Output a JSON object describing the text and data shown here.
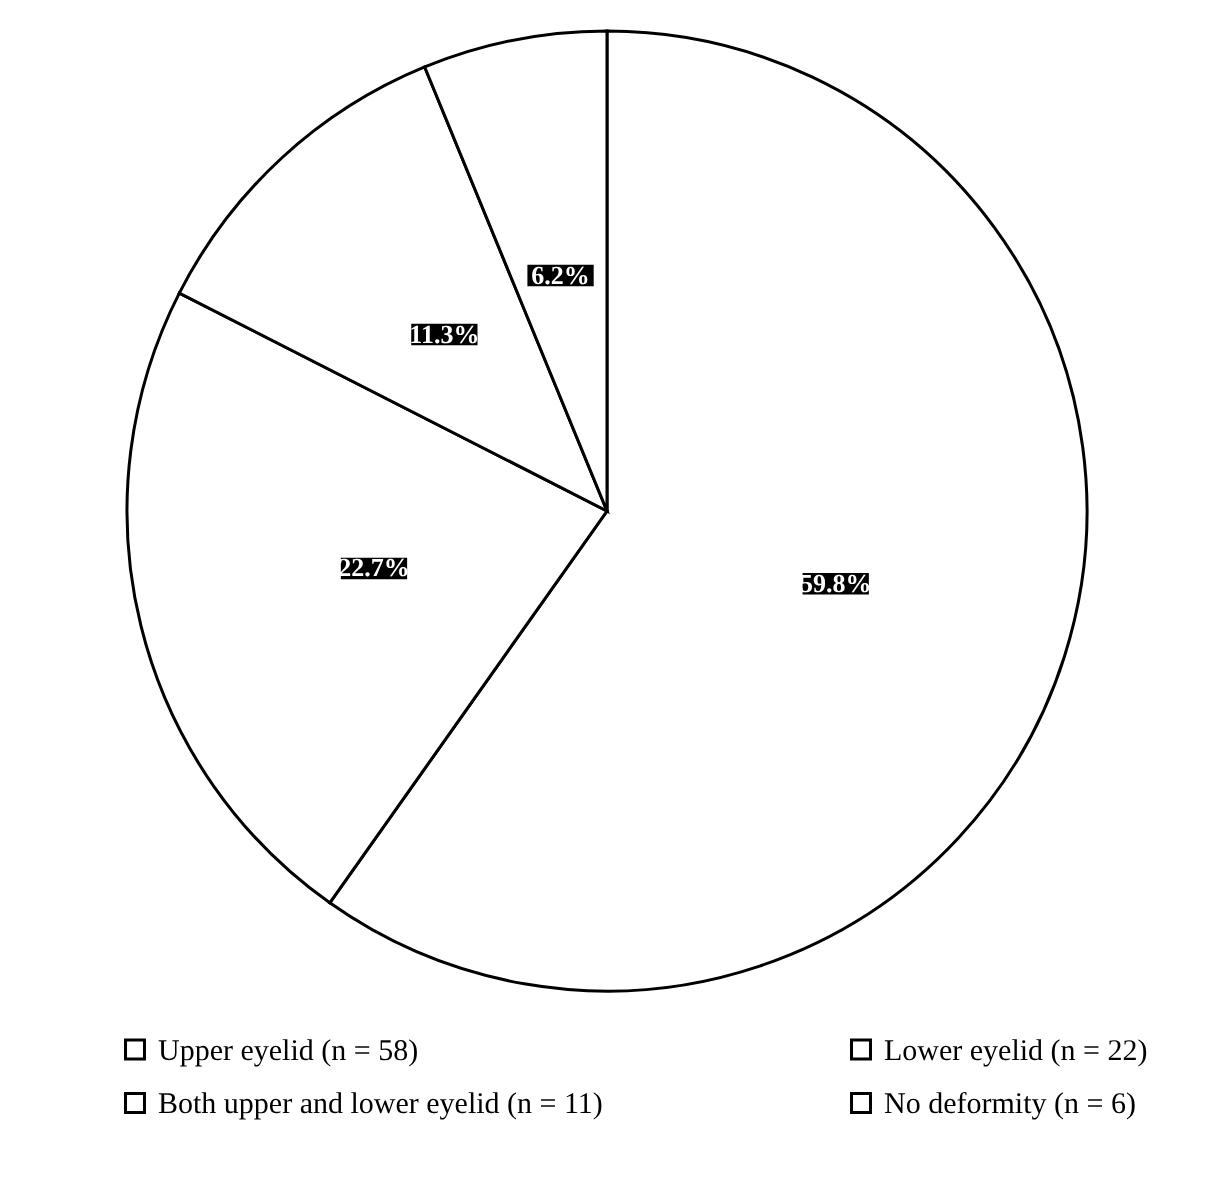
{
  "chart_data": {
    "type": "pie",
    "categories": [
      "Upper eyelid (n = 58)",
      "Lower eyelid (n = 22)",
      "Both upper and lower eyelid (n = 11)",
      "No deformity (n = 6)"
    ],
    "values": [
      59.8,
      22.7,
      11.3,
      6.2
    ],
    "colors": [
      "#ffffff",
      "#ffffff",
      "#ffffff",
      "#ffffff"
    ],
    "value_labels": [
      "59.8%",
      "22.7%",
      "11.3%",
      "6.2%"
    ],
    "legend": "bottom"
  }
}
